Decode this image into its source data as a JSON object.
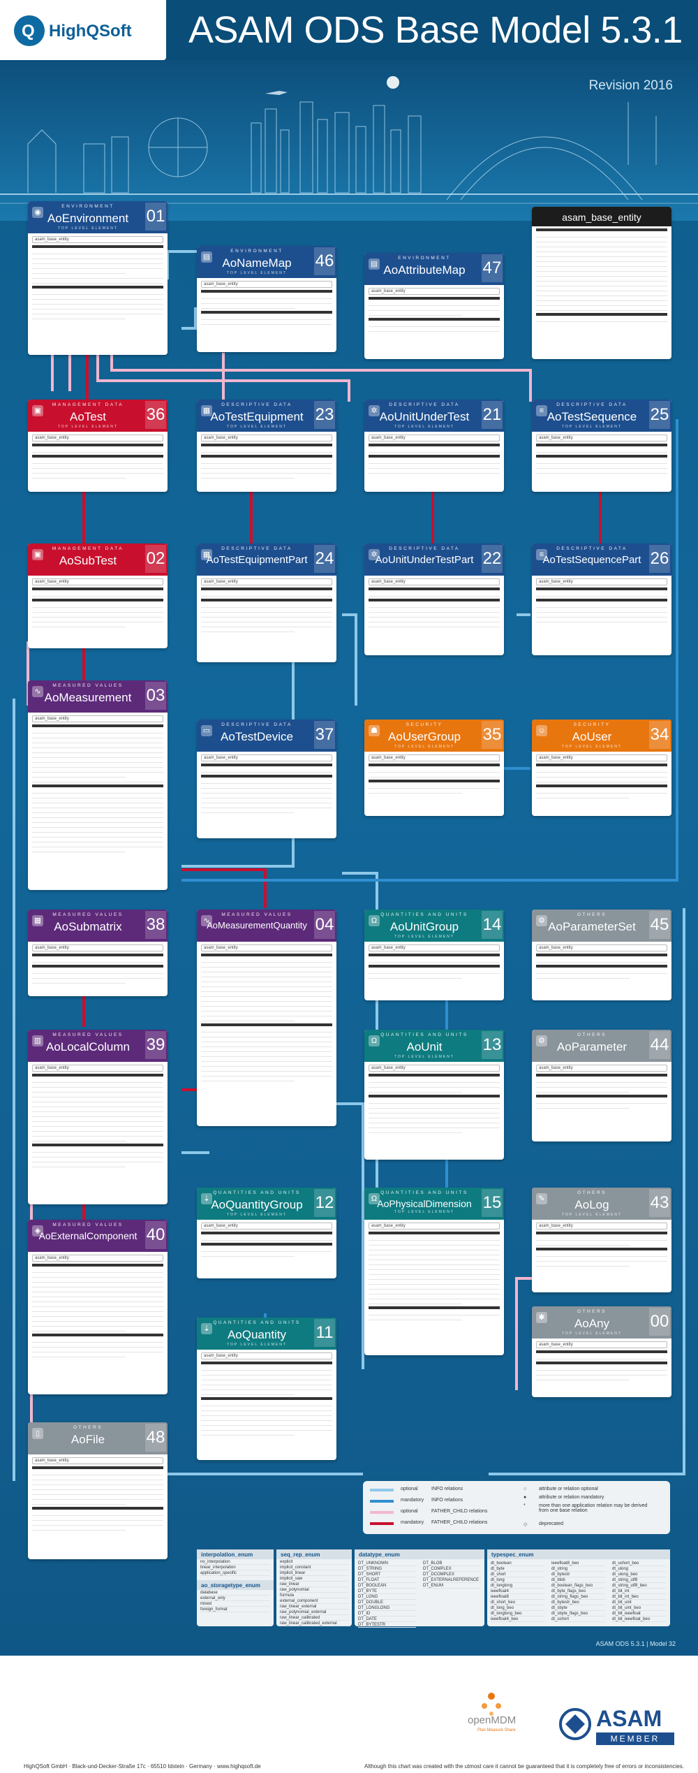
{
  "header": {
    "logo_text": "HighQSoft",
    "title": "ASAM ODS Base Model 5.3.1",
    "revision": "Revision 2016"
  },
  "boxes": {
    "ao_environment": {
      "category": "ENVIRONMENT",
      "name": "AoEnvironment",
      "number": "01",
      "top_label": "TOP LEVEL ELEMENT"
    },
    "ao_name_map": {
      "category": "ENVIRONMENT",
      "name": "AoNameMap",
      "number": "46",
      "top_label": "TOP LEVEL ELEMENT"
    },
    "ao_attribute_map": {
      "category": "ENVIRONMENT",
      "name": "AoAttributeMap",
      "number": "47",
      "top_label": ""
    },
    "asam_base_entity": {
      "name": "asam_base_entity"
    },
    "ao_test": {
      "category": "MANAGEMENT DATA",
      "name": "AoTest",
      "number": "36",
      "top_label": "TOP LEVEL ELEMENT"
    },
    "ao_test_equipment": {
      "category": "DESCRIPTIVE DATA",
      "name": "AoTestEquipment",
      "number": "23",
      "top_label": "TOP LEVEL ELEMENT"
    },
    "ao_unit_under_test": {
      "category": "DESCRIPTIVE DATA",
      "name": "AoUnitUnderTest",
      "number": "21",
      "top_label": "TOP LEVEL ELEMENT"
    },
    "ao_test_sequence": {
      "category": "DESCRIPTIVE DATA",
      "name": "AoTestSequence",
      "number": "25",
      "top_label": "TOP LEVEL ELEMENT"
    },
    "ao_sub_test": {
      "category": "MANAGEMENT DATA",
      "name": "AoSubTest",
      "number": "02",
      "top_label": ""
    },
    "ao_test_equipment_part": {
      "category": "DESCRIPTIVE DATA",
      "name": "AoTestEquipmentPart",
      "number": "24",
      "top_label": ""
    },
    "ao_unit_under_test_part": {
      "category": "DESCRIPTIVE DATA",
      "name": "AoUnitUnderTestPart",
      "number": "22",
      "top_label": ""
    },
    "ao_test_sequence_part": {
      "category": "DESCRIPTIVE DATA",
      "name": "AoTestSequencePart",
      "number": "26",
      "top_label": ""
    },
    "ao_measurement": {
      "category": "MEASURED VALUES",
      "name": "AoMeasurement",
      "number": "03",
      "top_label": ""
    },
    "ao_test_device": {
      "category": "DESCRIPTIVE DATA",
      "name": "AoTestDevice",
      "number": "37",
      "top_label": ""
    },
    "ao_user_group": {
      "category": "SECURITY",
      "name": "AoUserGroup",
      "number": "35",
      "top_label": "TOP LEVEL ELEMENT"
    },
    "ao_user": {
      "category": "SECURITY",
      "name": "AoUser",
      "number": "34",
      "top_label": "TOP LEVEL ELEMENT"
    },
    "ao_submatrix": {
      "category": "MEASURED VALUES",
      "name": "AoSubmatrix",
      "number": "38",
      "top_label": ""
    },
    "ao_measurement_quantity": {
      "category": "MEASURED VALUES",
      "name": "AoMeasurementQuantity",
      "number": "04",
      "top_label": ""
    },
    "ao_unit_group": {
      "category": "QUANTITIES AND UNITS",
      "name": "AoUnitGroup",
      "number": "14",
      "top_label": "TOP LEVEL ELEMENT"
    },
    "ao_parameter_set": {
      "category": "OTHERS",
      "name": "AoParameterSet",
      "number": "45",
      "top_label": ""
    },
    "ao_local_column": {
      "category": "MEASURED VALUES",
      "name": "AoLocalColumn",
      "number": "39",
      "top_label": ""
    },
    "ao_unit": {
      "category": "QUANTITIES AND UNITS",
      "name": "AoUnit",
      "number": "13",
      "top_label": "TOP LEVEL ELEMENT"
    },
    "ao_parameter": {
      "category": "OTHERS",
      "name": "AoParameter",
      "number": "44",
      "top_label": ""
    },
    "ao_external_component": {
      "category": "MEASURED VALUES",
      "name": "AoExternalComponent",
      "number": "40",
      "top_label": ""
    },
    "ao_quantity_group": {
      "category": "QUANTITIES AND UNITS",
      "name": "AoQuantityGroup",
      "number": "12",
      "top_label": "TOP LEVEL ELEMENT"
    },
    "ao_physical_dimension": {
      "category": "QUANTITIES AND UNITS",
      "name": "AoPhysicalDimension",
      "number": "15",
      "top_label": "TOP LEVEL ELEMENT"
    },
    "ao_log": {
      "category": "OTHERS",
      "name": "AoLog",
      "number": "43",
      "top_label": "TOP LEVEL ELEMENT"
    },
    "ao_quantity": {
      "category": "QUANTITIES AND UNITS",
      "name": "AoQuantity",
      "number": "11",
      "top_label": "TOP LEVEL ELEMENT"
    },
    "ao_any": {
      "category": "OTHERS",
      "name": "AoAny",
      "number": "00",
      "top_label": "TOP LEVEL ELEMENT"
    },
    "ao_file": {
      "category": "OTHERS",
      "name": "AoFile",
      "number": "48",
      "top_label": ""
    }
  },
  "base_label": "asam_base_entity",
  "legend": {
    "rows": [
      {
        "a": "optional",
        "b": "INFO relations",
        "color": "#8ec9ea"
      },
      {
        "a": "mandatory",
        "b": "INFO relations",
        "color": "#2f8fd0"
      },
      {
        "a": "optional",
        "b": "FATHER_CHILD relations",
        "color": "#f2b6cf"
      },
      {
        "a": "mandatory",
        "b": "FATHER_CHILD relations",
        "color": "#c8102e"
      }
    ],
    "right": [
      "attribute or relation optional",
      "attribute or relation mandatory",
      "more than one application relation may be derived from one base relation",
      "deprecated"
    ]
  },
  "enums": {
    "interpolation_enum": {
      "title": "interpolation_enum",
      "items": [
        "no_interpolation",
        "linear_interpolation",
        "application_specific"
      ]
    },
    "seq_rep_enum": {
      "title": "seq_rep_enum",
      "items": [
        "explicit",
        "implicit_constant",
        "implicit_linear",
        "implicit_saw",
        "raw_linear",
        "raw_polynomial",
        "formula",
        "external_component",
        "raw_linear_external",
        "raw_polynomial_external",
        "raw_linear_calibrated",
        "raw_linear_calibrated_external"
      ]
    },
    "datatype_enum": {
      "title": "datatype_enum",
      "items": [
        "DT_UNKNOWN",
        "DT_STRING",
        "DT_SHORT",
        "DT_FLOAT",
        "DT_BOOLEAN",
        "DT_BYTE",
        "DT_LONG",
        "DT_DOUBLE",
        "DT_LONGLONG",
        "DT_ID",
        "DT_DATE",
        "DT_BYTESTR",
        "DT_BLOB",
        "DT_COMPLEX",
        "DT_DCOMPLEX",
        "DT_EXTERNALREFERENCE",
        "DT_ENUM"
      ]
    },
    "ao_storagetype_enum": {
      "title": "ao_storagetype_enum",
      "items": [
        "database",
        "external_only",
        "mixed",
        "foreign_format"
      ]
    },
    "typespec_enum": {
      "title": "typespec_enum",
      "items": [
        "dt_boolean",
        "dt_byte",
        "dt_short",
        "dt_long",
        "dt_longlong",
        "ieeefloat4",
        "ieeefloat8",
        "dt_short_beo",
        "dt_long_beo",
        "dt_longlong_beo",
        "ieeefloat4_beo",
        "ieeefloat8_beo",
        "dt_string",
        "dt_bytestr",
        "dt_blob",
        "dt_boolean_flags_beo",
        "dt_byte_flags_beo",
        "dt_string_flags_beo",
        "dt_bytestr_beo",
        "dt_sbyte",
        "dt_sbyte_flags_beo",
        "dt_ushort",
        "dt_ushort_beo",
        "dt_ulong",
        "dt_ulong_beo",
        "dt_string_utf8",
        "dt_string_utf8_beo",
        "dt_bit_int",
        "dt_bit_int_beo",
        "dt_bit_uint",
        "dt_bit_uint_beo",
        "dt_bit_ieeefloat",
        "dt_bit_ieeefloat_beo"
      ]
    }
  },
  "model_ref": "ASAM ODS 5.3.1 | Model 32",
  "footer": {
    "openmdm": "openMDM",
    "openmdm_sub": "Plan Measure Share",
    "asam": "ASAM",
    "asam_member": "MEMBER",
    "address": "HighQSoft GmbH · Black-und-Decker-Straße 17c · 65510 Idstein · Germany · www.highqsoft.de",
    "disclaimer": "Although this chart was created with the utmost care it cannot be guaranteed that it is completely free of errors or inconsistencies."
  },
  "colors": {
    "measured": "#5d2a7a",
    "management": "#c8102e",
    "descriptive": "#1d4f8f",
    "quantities": "#0e7b80",
    "security": "#e8760f",
    "others": "#6b7a84",
    "info_optional": "#8ec9ea",
    "info_mandatory": "#2f8fd0",
    "fc_optional": "#f2b6cf",
    "fc_mandatory": "#c8102e"
  }
}
